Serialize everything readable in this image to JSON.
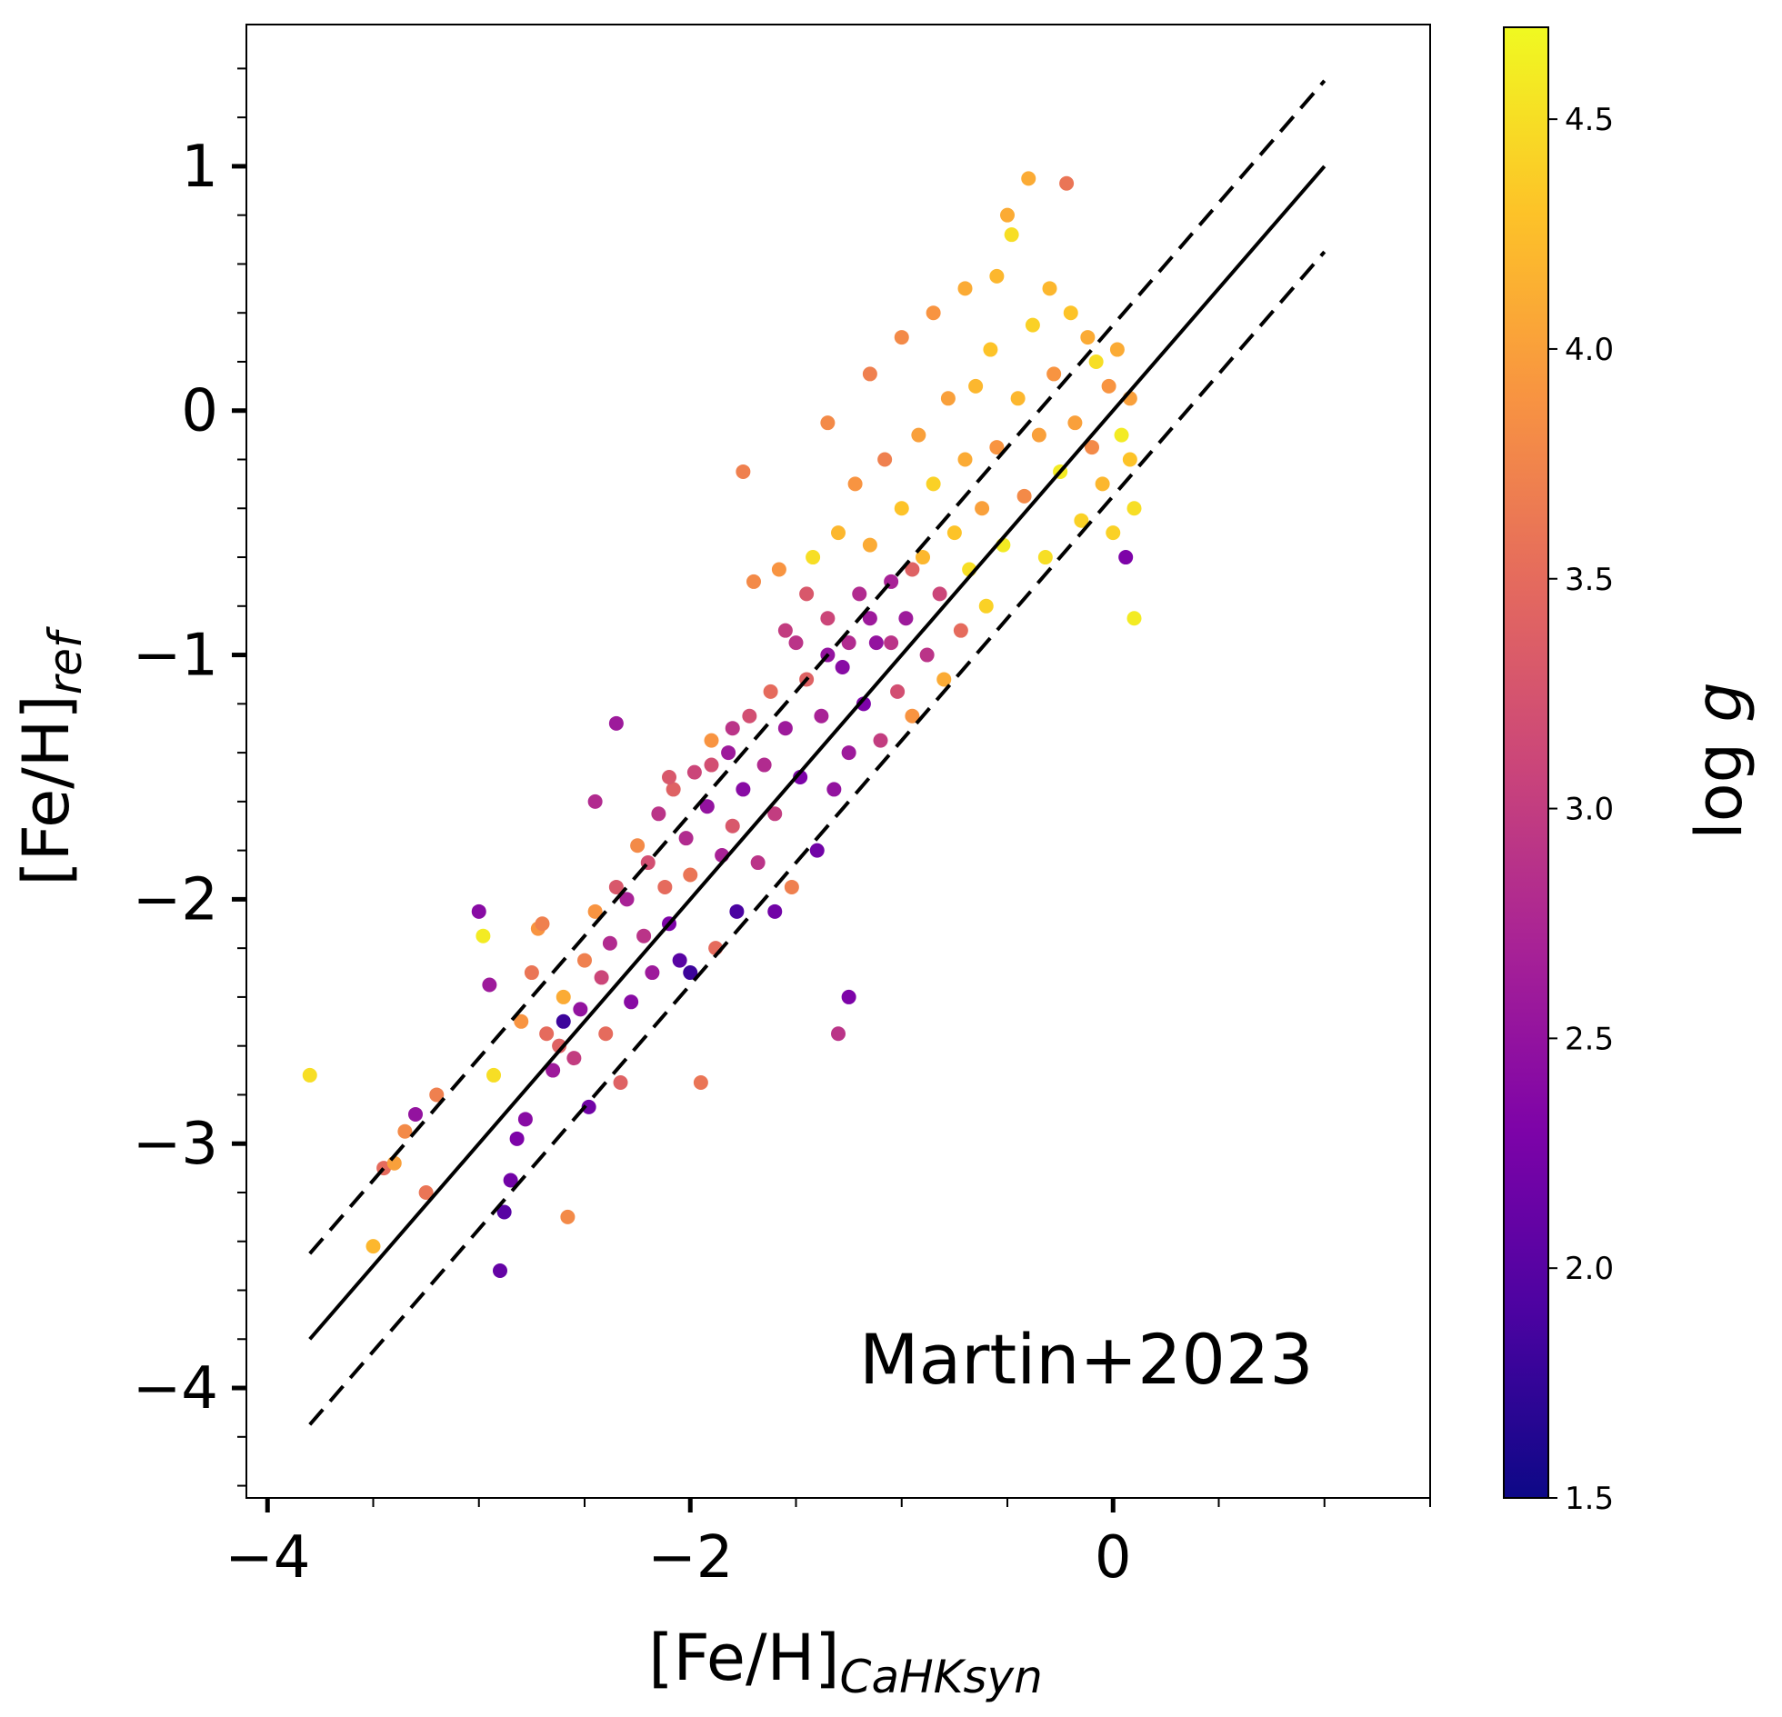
{
  "chart_data": {
    "type": "scatter",
    "annotation": "Martin+2023",
    "xlabel_main": "[Fe/H]",
    "xlabel_sub": "CaHKsyn",
    "ylabel_main": "[Fe/H]",
    "ylabel_sub": "ref",
    "xlim": [
      -4.1,
      1.5
    ],
    "ylim": [
      -4.45,
      1.58
    ],
    "x_ticks": [
      {
        "value": -4,
        "label": "−4"
      },
      {
        "value": -2,
        "label": "−2"
      },
      {
        "value": 0,
        "label": "0"
      }
    ],
    "y_ticks": [
      {
        "value": 1,
        "label": "1"
      },
      {
        "value": 0,
        "label": "0"
      },
      {
        "value": -1,
        "label": "−1"
      },
      {
        "value": -2,
        "label": "−2"
      },
      {
        "value": -3,
        "label": "−3"
      },
      {
        "value": -4,
        "label": "−4"
      }
    ],
    "colorbar": {
      "label": "log g",
      "label_main": "log",
      "label_var": "g",
      "range": [
        1.5,
        4.7
      ],
      "colormap": "plasma",
      "ticks": [
        {
          "value": 1.5,
          "label": "1.5"
        },
        {
          "value": 2.0,
          "label": "2.0"
        },
        {
          "value": 2.5,
          "label": "2.5"
        },
        {
          "value": 3.0,
          "label": "3.0"
        },
        {
          "value": 3.5,
          "label": "3.5"
        },
        {
          "value": 4.0,
          "label": "4.0"
        },
        {
          "value": 4.5,
          "label": "4.5"
        }
      ]
    },
    "lines": [
      {
        "name": "one-to-one",
        "style": "solid",
        "x": [
          -3.8,
          1.0
        ],
        "y": [
          -3.8,
          1.0
        ]
      },
      {
        "name": "upper-bound",
        "style": "dashed",
        "x": [
          -3.8,
          1.0
        ],
        "y": [
          -3.45,
          1.35
        ]
      },
      {
        "name": "lower-bound",
        "style": "dashed",
        "x": [
          -3.8,
          1.0
        ],
        "y": [
          -4.15,
          0.65
        ]
      }
    ],
    "points": [
      [
        -3.8,
        -2.72,
        4.5
      ],
      [
        -3.5,
        -3.42,
        4.2
      ],
      [
        -3.45,
        -3.1,
        3.5
      ],
      [
        -3.4,
        -3.08,
        4.0
      ],
      [
        -3.35,
        -2.95,
        3.8
      ],
      [
        -3.3,
        -2.88,
        2.5
      ],
      [
        -3.25,
        -3.2,
        3.6
      ],
      [
        -3.2,
        -2.8,
        3.7
      ],
      [
        -3.0,
        -2.05,
        2.4
      ],
      [
        -2.98,
        -2.15,
        4.6
      ],
      [
        -2.95,
        -2.35,
        2.6
      ],
      [
        -2.93,
        -2.72,
        4.5
      ],
      [
        -2.9,
        -3.52,
        2.1
      ],
      [
        -2.88,
        -3.28,
        2.0
      ],
      [
        -2.85,
        -3.15,
        2.2
      ],
      [
        -2.82,
        -2.98,
        2.3
      ],
      [
        -2.8,
        -2.5,
        3.9
      ],
      [
        -2.78,
        -2.9,
        2.4
      ],
      [
        -2.75,
        -2.3,
        3.6
      ],
      [
        -2.72,
        -2.12,
        3.9
      ],
      [
        -2.7,
        -2.1,
        3.7
      ],
      [
        -2.68,
        -2.55,
        3.5
      ],
      [
        -2.65,
        -2.7,
        2.6
      ],
      [
        -2.62,
        -2.6,
        3.4
      ],
      [
        -2.6,
        -2.4,
        4.1
      ],
      [
        -2.58,
        -3.3,
        3.8
      ],
      [
        -2.55,
        -2.65,
        3.0
      ],
      [
        -2.52,
        -2.45,
        2.5
      ],
      [
        -2.5,
        -2.25,
        3.7
      ],
      [
        -2.48,
        -2.85,
        2.2
      ],
      [
        -2.45,
        -2.05,
        3.9
      ],
      [
        -2.42,
        -2.32,
        3.1
      ],
      [
        -2.4,
        -2.55,
        3.5
      ],
      [
        -2.38,
        -2.18,
        2.8
      ],
      [
        -2.35,
        -1.95,
        3.3
      ],
      [
        -2.33,
        -2.75,
        3.4
      ],
      [
        -2.3,
        -2.0,
        2.7
      ],
      [
        -2.28,
        -2.42,
        2.4
      ],
      [
        -2.25,
        -1.78,
        3.8
      ],
      [
        -2.22,
        -2.15,
        2.9
      ],
      [
        -2.2,
        -1.85,
        3.2
      ],
      [
        -2.18,
        -2.3,
        2.6
      ],
      [
        -2.15,
        -1.65,
        2.9
      ],
      [
        -2.12,
        -1.95,
        3.5
      ],
      [
        -2.1,
        -2.1,
        2.3
      ],
      [
        -2.08,
        -1.55,
        3.4
      ],
      [
        -2.05,
        -2.25,
        2.0
      ],
      [
        -2.02,
        -1.75,
        2.8
      ],
      [
        -2.0,
        -1.9,
        3.6
      ],
      [
        -1.98,
        -1.48,
        3.1
      ],
      [
        -1.95,
        -2.75,
        3.6
      ],
      [
        -1.92,
        -1.62,
        2.5
      ],
      [
        -1.9,
        -1.35,
        3.9
      ],
      [
        -1.88,
        -2.2,
        3.5
      ],
      [
        -1.85,
        -1.82,
        2.7
      ],
      [
        -1.82,
        -1.4,
        2.6
      ],
      [
        -1.8,
        -1.7,
        3.3
      ],
      [
        -1.78,
        -2.05,
        1.9
      ],
      [
        -1.75,
        -1.55,
        2.4
      ],
      [
        -1.72,
        -1.25,
        3.2
      ],
      [
        -1.7,
        -0.7,
        3.8
      ],
      [
        -1.68,
        -1.85,
        2.9
      ],
      [
        -1.65,
        -1.45,
        2.8
      ],
      [
        -1.62,
        -1.15,
        3.5
      ],
      [
        -1.6,
        -1.65,
        3.0
      ],
      [
        -1.58,
        -0.65,
        3.9
      ],
      [
        -1.55,
        -1.3,
        2.6
      ],
      [
        -1.52,
        -1.95,
        3.7
      ],
      [
        -1.5,
        -0.95,
        2.9
      ],
      [
        -1.48,
        -1.5,
        2.3
      ],
      [
        -1.45,
        -1.1,
        3.4
      ],
      [
        -1.42,
        -0.6,
        4.5
      ],
      [
        -1.4,
        -1.8,
        2.2
      ],
      [
        -1.38,
        -1.25,
        2.7
      ],
      [
        -1.35,
        -0.85,
        3.1
      ],
      [
        -1.32,
        -1.55,
        2.5
      ],
      [
        -1.3,
        -0.5,
        4.2
      ],
      [
        -1.28,
        -1.05,
        2.4
      ],
      [
        -1.25,
        -1.4,
        2.6
      ],
      [
        -1.22,
        -0.3,
        3.9
      ],
      [
        -1.2,
        -0.75,
        2.8
      ],
      [
        -1.18,
        -1.2,
        2.3
      ],
      [
        -1.15,
        -0.55,
        4.1
      ],
      [
        -1.12,
        -0.95,
        2.5
      ],
      [
        -1.1,
        -1.35,
        3.0
      ],
      [
        -1.08,
        -0.2,
        3.7
      ],
      [
        -1.05,
        -0.7,
        2.7
      ],
      [
        -1.02,
        -1.15,
        3.2
      ],
      [
        -1.0,
        -0.4,
        4.3
      ],
      [
        -0.98,
        -0.85,
        2.6
      ],
      [
        -0.95,
        -1.25,
        3.9
      ],
      [
        -0.92,
        -0.1,
        4.0
      ],
      [
        -0.9,
        -0.6,
        4.2
      ],
      [
        -0.88,
        -1.0,
        2.9
      ],
      [
        -0.85,
        -0.3,
        4.4
      ],
      [
        -0.82,
        -0.75,
        3.1
      ],
      [
        -0.8,
        -1.1,
        4.1
      ],
      [
        -0.78,
        0.05,
        4.0
      ],
      [
        -0.75,
        -0.5,
        4.3
      ],
      [
        -0.72,
        -0.9,
        3.5
      ],
      [
        -0.7,
        -0.2,
        4.1
      ],
      [
        -0.68,
        -0.65,
        4.5
      ],
      [
        -0.65,
        0.1,
        4.2
      ],
      [
        -0.62,
        -0.4,
        4.0
      ],
      [
        -0.6,
        -0.8,
        4.4
      ],
      [
        -0.58,
        0.25,
        4.3
      ],
      [
        -0.55,
        -0.15,
        3.9
      ],
      [
        -0.52,
        -0.55,
        4.6
      ],
      [
        -0.5,
        0.8,
        4.1
      ],
      [
        -0.48,
        0.72,
        4.5
      ],
      [
        -0.45,
        0.05,
        4.2
      ],
      [
        -0.42,
        -0.35,
        3.8
      ],
      [
        -0.4,
        0.95,
        4.1
      ],
      [
        -0.38,
        0.35,
        4.4
      ],
      [
        -0.35,
        -0.1,
        4.0
      ],
      [
        -0.32,
        -0.6,
        4.5
      ],
      [
        -0.3,
        0.5,
        4.2
      ],
      [
        -0.28,
        0.15,
        3.9
      ],
      [
        -0.25,
        -0.25,
        4.6
      ],
      [
        -0.22,
        0.93,
        3.6
      ],
      [
        -0.2,
        0.4,
        4.3
      ],
      [
        -0.18,
        -0.05,
        4.0
      ],
      [
        -0.15,
        -0.45,
        4.4
      ],
      [
        -0.12,
        0.3,
        4.1
      ],
      [
        -0.1,
        -0.15,
        3.8
      ],
      [
        -0.08,
        0.2,
        4.5
      ],
      [
        -0.05,
        -0.3,
        4.2
      ],
      [
        -0.02,
        0.1,
        3.9
      ],
      [
        0.0,
        -0.5,
        4.4
      ],
      [
        0.02,
        0.25,
        4.1
      ],
      [
        0.04,
        -0.1,
        4.6
      ],
      [
        0.06,
        -0.6,
        2.3
      ],
      [
        0.08,
        0.05,
        4.0
      ],
      [
        0.1,
        -0.4,
        4.5
      ],
      [
        0.1,
        -0.85,
        4.6
      ],
      [
        0.08,
        -0.2,
        4.3
      ],
      [
        -1.6,
        -2.05,
        2.2
      ],
      [
        -1.55,
        -0.9,
        3.0
      ],
      [
        -1.45,
        -0.75,
        3.3
      ],
      [
        -1.35,
        -1.0,
        2.5
      ],
      [
        -1.25,
        -0.95,
        2.8
      ],
      [
        -1.15,
        -0.85,
        2.6
      ],
      [
        -1.05,
        -0.95,
        2.9
      ],
      [
        -0.95,
        -0.65,
        3.4
      ],
      [
        -1.25,
        -2.4,
        2.3
      ],
      [
        -1.3,
        -2.55,
        2.9
      ],
      [
        -2.0,
        -2.3,
        1.8
      ],
      [
        -2.6,
        -2.5,
        1.8
      ],
      [
        -2.35,
        -1.28,
        2.6
      ],
      [
        -2.45,
        -1.6,
        2.8
      ],
      [
        -1.75,
        -0.25,
        3.7
      ],
      [
        -1.35,
        -0.05,
        3.8
      ],
      [
        -1.15,
        0.15,
        3.7
      ],
      [
        -1.0,
        0.3,
        3.8
      ],
      [
        -0.85,
        0.4,
        3.9
      ],
      [
        -0.7,
        0.5,
        4.1
      ],
      [
        -0.55,
        0.55,
        4.2
      ],
      [
        -1.8,
        -1.3,
        2.9
      ],
      [
        -1.9,
        -1.45,
        3.2
      ],
      [
        -2.1,
        -1.5,
        3.3
      ]
    ]
  }
}
